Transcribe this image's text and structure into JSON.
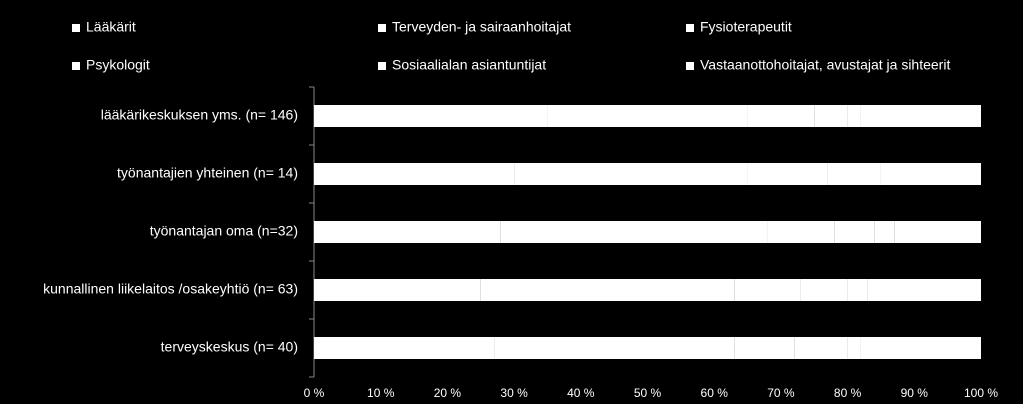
{
  "chart_data": {
    "type": "stacked-bar-horizontal",
    "categories": [
      "lääkärikeskuksen yms. (n= 146)",
      "työnantajien yhteinen (n= 14)",
      "työnantajan oma (n=32)",
      "kunnallinen liikelaitos /osakeyhtiö (n= 63)",
      "terveyskeskus (n= 40)"
    ],
    "series": [
      {
        "name": "Lääkärit",
        "color": "#ffffff",
        "values": [
          35,
          30,
          28,
          25,
          27
        ]
      },
      {
        "name": "Terveyden- ja sairaanhoitajat",
        "color": "#ffffff",
        "values": [
          30,
          35,
          40,
          38,
          36
        ]
      },
      {
        "name": "Fysioterapeutit",
        "color": "#ffffff",
        "values": [
          10,
          12,
          10,
          10,
          9
        ]
      },
      {
        "name": "Psykologit",
        "color": "#ffffff",
        "values": [
          5,
          8,
          6,
          7,
          8
        ]
      },
      {
        "name": "Sosiaalialan asiantuntijat",
        "color": "#ffffff",
        "values": [
          2,
          0,
          3,
          3,
          2
        ]
      },
      {
        "name": "Vastaanottohoitajat, avustajat ja sihteerit",
        "color": "#ffffff",
        "values": [
          18,
          15,
          13,
          17,
          18
        ]
      }
    ],
    "xlim": [
      0,
      100
    ],
    "xticks": [
      {
        "value": 0,
        "label": "0 %"
      },
      {
        "value": 10,
        "label": "10 %"
      },
      {
        "value": 20,
        "label": "20 %"
      },
      {
        "value": 30,
        "label": "30 %"
      },
      {
        "value": 40,
        "label": "40 %"
      },
      {
        "value": 50,
        "label": "50 %"
      },
      {
        "value": 60,
        "label": "60 %"
      },
      {
        "value": 70,
        "label": "70 %"
      },
      {
        "value": 80,
        "label": "80 %"
      },
      {
        "value": 90,
        "label": "90 %"
      },
      {
        "value": 100,
        "label": "100 %"
      }
    ],
    "legend": "top"
  }
}
